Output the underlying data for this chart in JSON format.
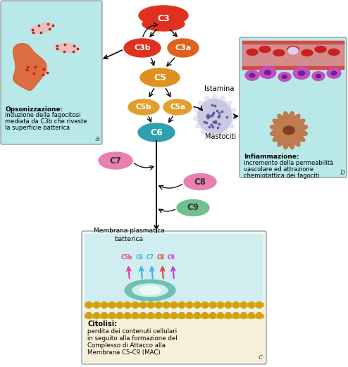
{
  "bg_color": "#ffffff",
  "box_a_color": "#b8e8e8",
  "box_b_color": "#b8e8e8",
  "c3_color": "#e03020",
  "c3b_color": "#e03020",
  "c3a_color": "#e06020",
  "c5_color": "#e09020",
  "c5b_color": "#e0a030",
  "c5a_color": "#e0a030",
  "c6_color": "#30a0b0",
  "c7_color": "#e880b0",
  "c8_color": "#e880b0",
  "c9_color": "#70c090",
  "opsonizzazione_bold": "Opsonizzazione:",
  "opsonizzazione_text": "induzione della fagocitosi\nmediata da C3b che riveste\nla superficie batterica",
  "infiammazione_bold": "Infiammazione:",
  "infiammazione_text": "incremento della permeabilità\nvascolare ed attrazione\nchemiotattica dei fagociti",
  "citolisi_bold": "Citolisi:",
  "citolisi_text": "perdita dei contenuti cellulari\nin seguito alla formazione del\nComplesso di Attacco alla\nMembrana C5-C9 (MAC)",
  "membrane_text": "Membrana plasmatica\nbatterica",
  "istamina_text": "Istamina",
  "mastociti_text": "Mastociti",
  "label_a": "a",
  "label_b": "b",
  "label_c": "c"
}
